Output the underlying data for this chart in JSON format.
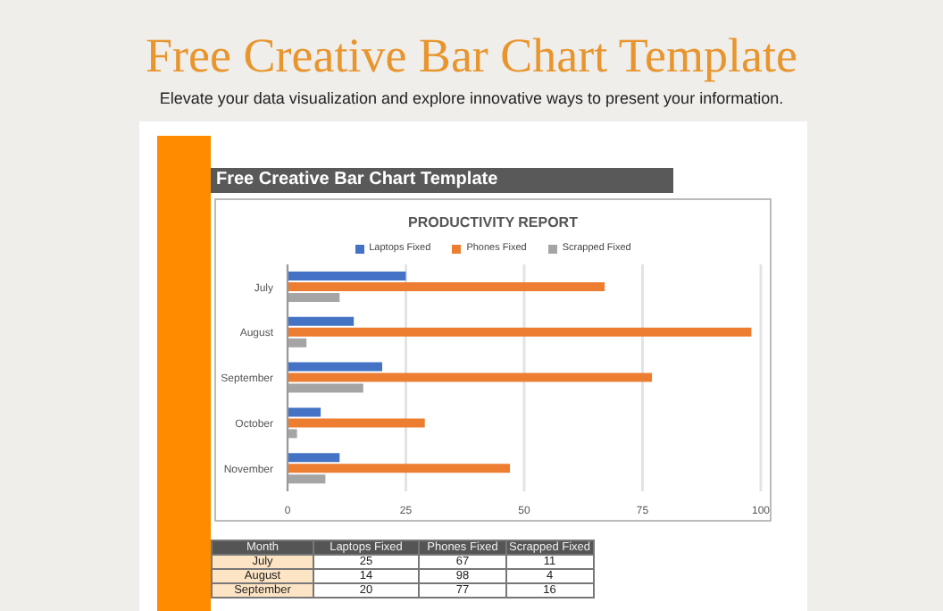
{
  "chart_data": {
    "type": "bar",
    "orientation": "horizontal",
    "title": "Free Creative Bar Chart Template",
    "subtitle": "Elevate your data visualization and explore innovative ways to present your information.",
    "annotations": [
      "Free Creative Bar Chart Template",
      "PRODUCTIVITY REPORT",
      "Month",
      "25",
      "67",
      "11",
      "14",
      "98",
      "4",
      "20",
      "77",
      "16"
    ],
    "categories": [
      "July",
      "August",
      "September",
      "October",
      "November"
    ],
    "series": [
      {
        "name": "Laptops Fixed",
        "color": "#4472c4",
        "values": [
          25,
          14,
          20,
          7,
          11
        ]
      },
      {
        "name": "Phones Fixed",
        "color": "#ed7d31",
        "values": [
          67,
          98,
          77,
          29,
          47
        ]
      },
      {
        "name": "Scrapped Fixed",
        "color": "#a5a5a5",
        "values": [
          11,
          4,
          16,
          2,
          8
        ]
      }
    ],
    "xlim": [
      0,
      100
    ],
    "xticks": [
      0,
      25,
      50,
      75,
      100
    ],
    "grid": "x",
    "legend": "top"
  }
}
